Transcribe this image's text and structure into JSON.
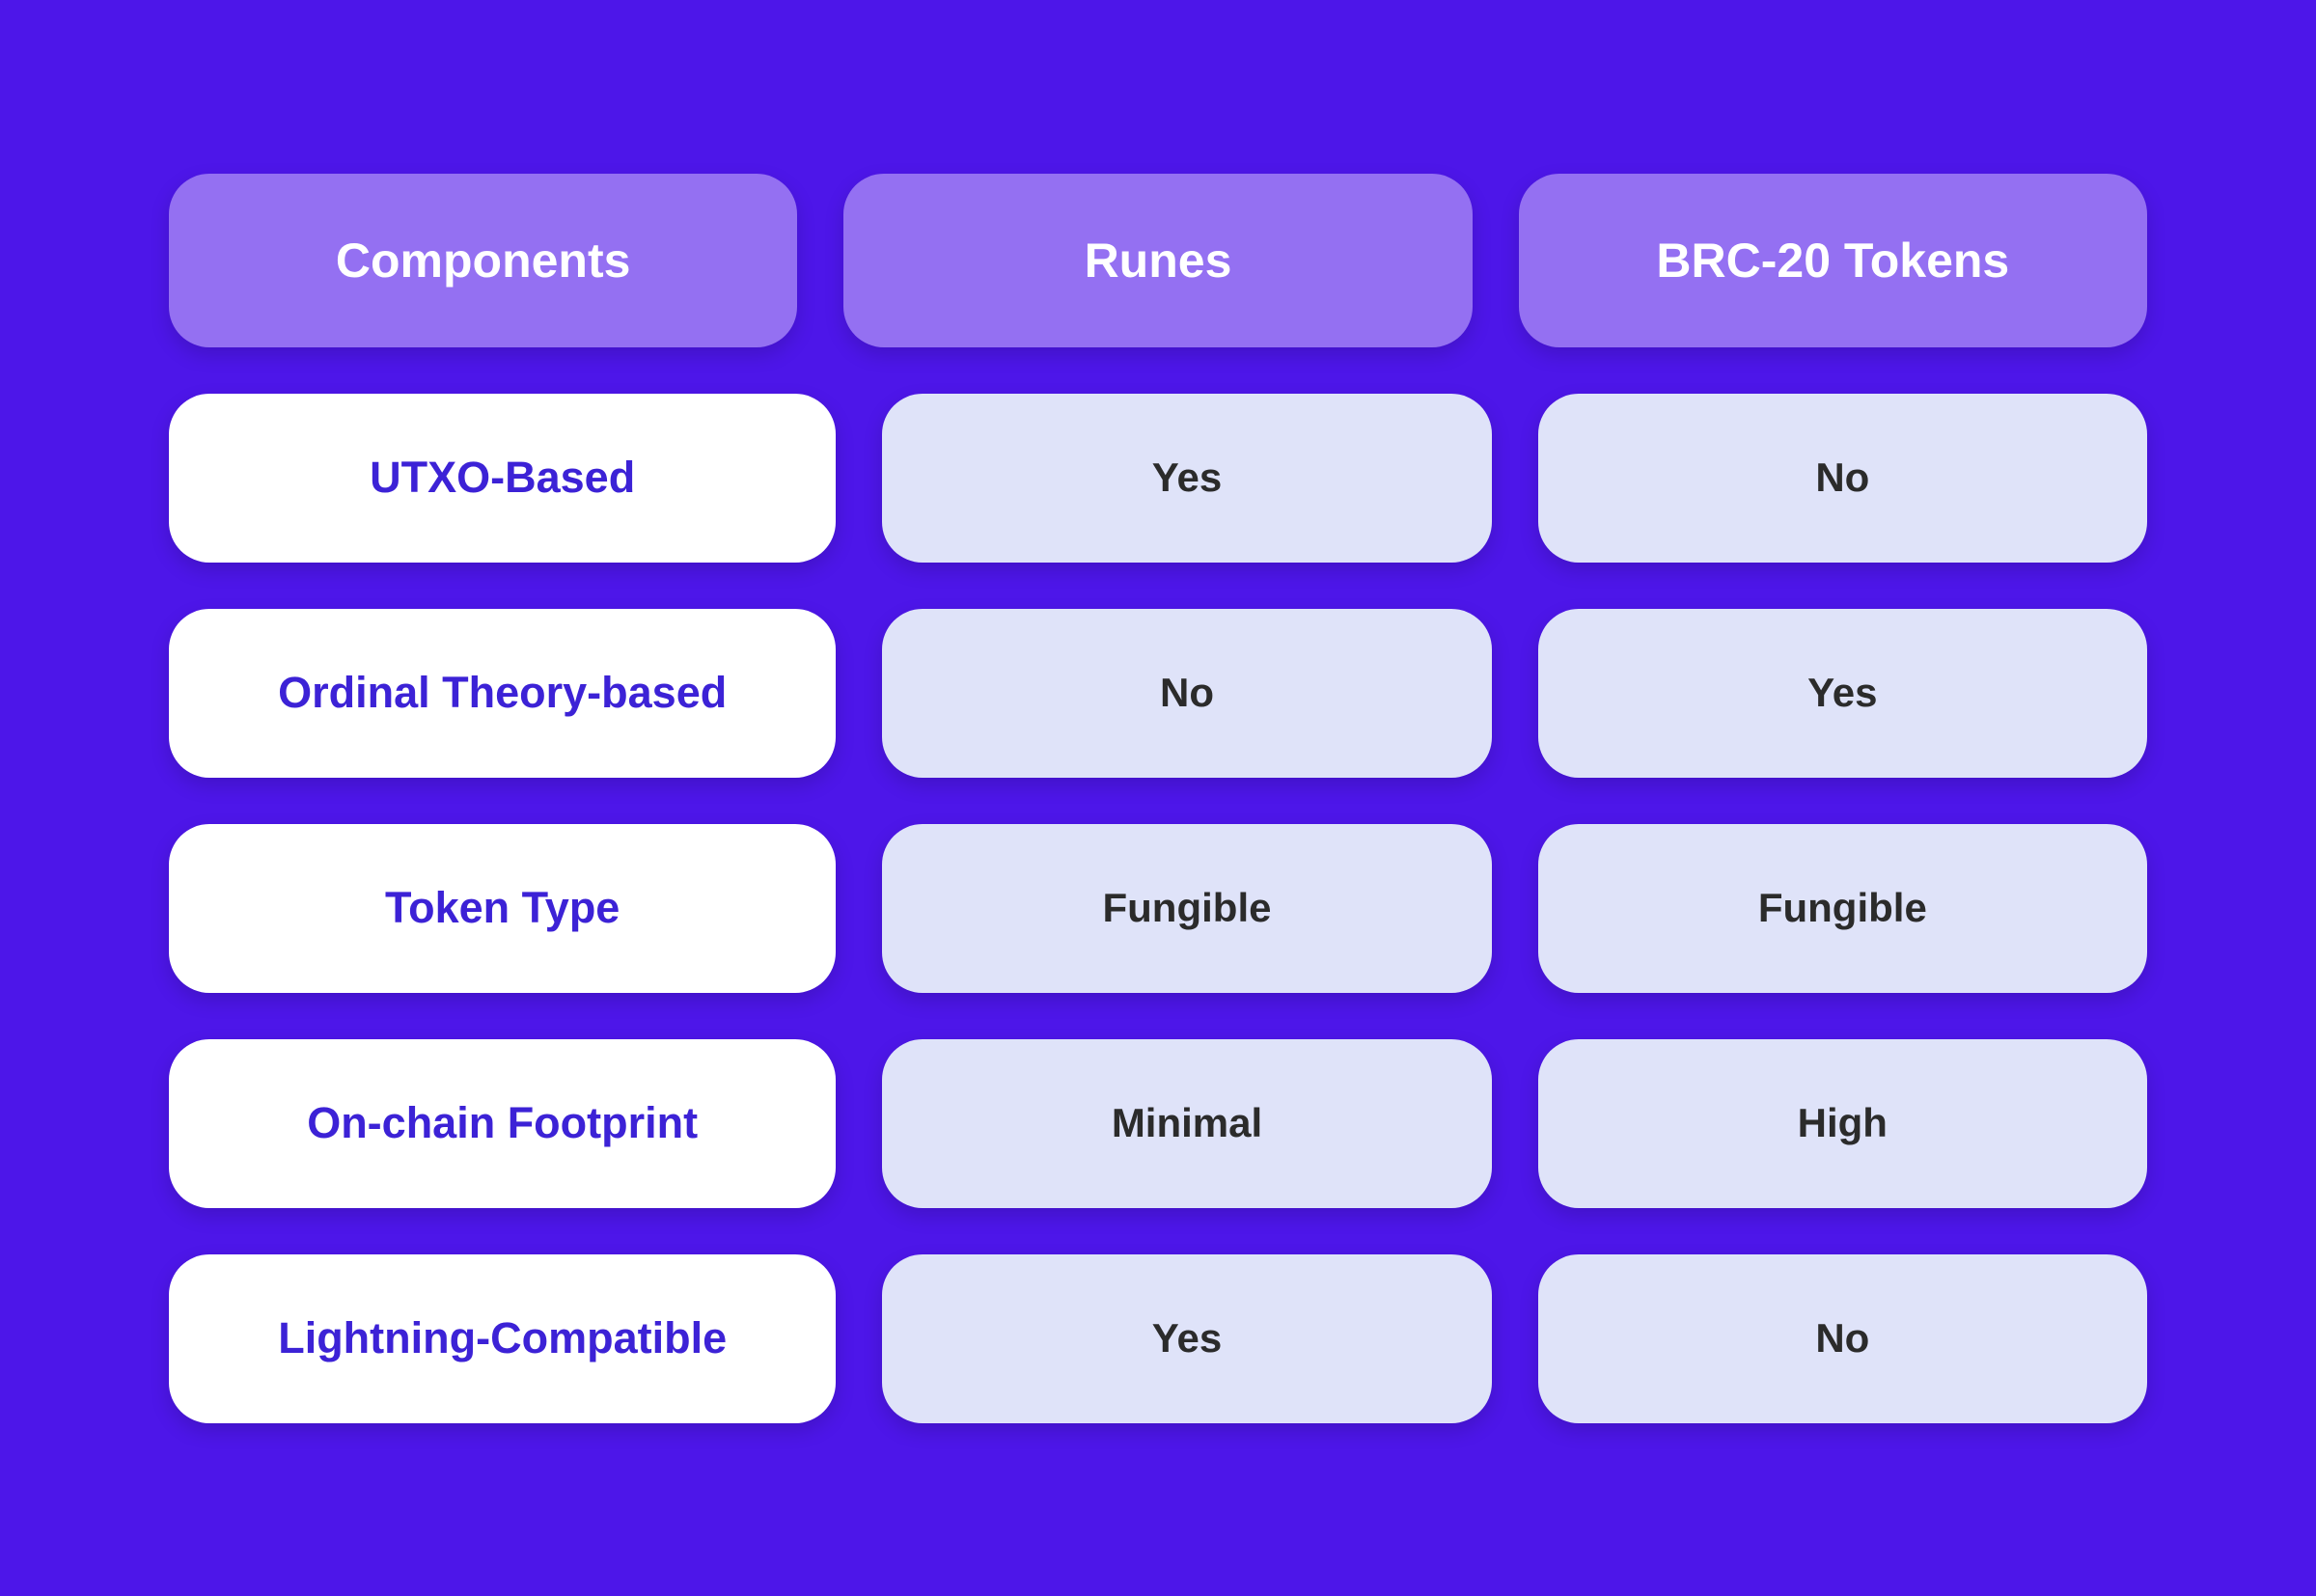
{
  "table": {
    "type": "comparison-table",
    "background_color": "#4d16e9",
    "header_bg_color": "#9470f2",
    "header_text_color": "#ffffff",
    "label_bg_color": "#ffffff",
    "label_text_color": "#3c22d6",
    "value_bg_color": "#dfe3f9",
    "value_text_color": "#2b2b2b",
    "border_radius": 42,
    "header_fontsize": 50,
    "label_fontsize": 45,
    "value_fontsize": 42,
    "columns": [
      "Components",
      "Runes",
      "BRC-20 Tokens"
    ],
    "rows": [
      {
        "label": "UTXO-Based",
        "runes": "Yes",
        "brc20": "No"
      },
      {
        "label": "Ordinal Theory-based",
        "runes": "No",
        "brc20": "Yes"
      },
      {
        "label": "Token Type",
        "runes": "Fungible",
        "brc20": "Fungible"
      },
      {
        "label": "On-chain Footprint",
        "runes": "Minimal",
        "brc20": "High"
      },
      {
        "label": "Lightning-Compatible",
        "runes": "Yes",
        "brc20": "No"
      }
    ]
  }
}
